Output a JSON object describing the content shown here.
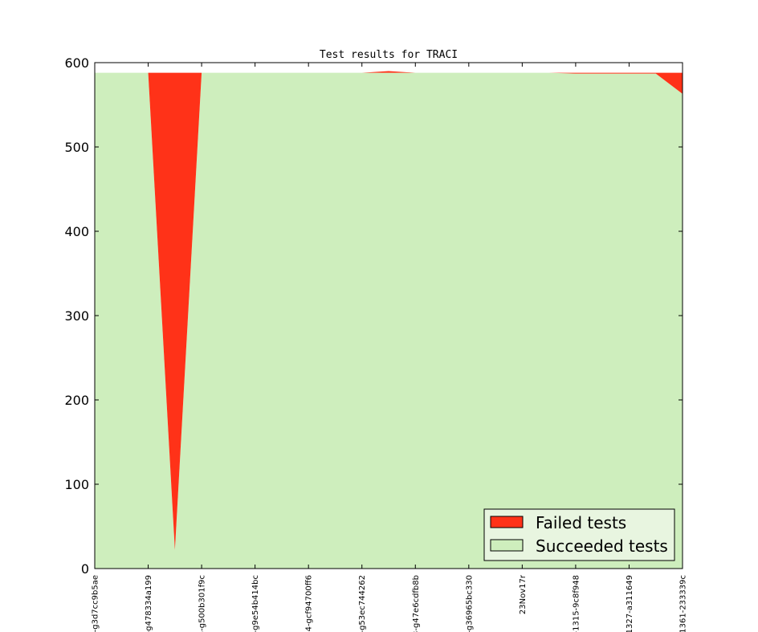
{
  "chart_data": {
    "type": "area",
    "title": "Test results for TRACI",
    "xlabel": "",
    "ylabel": "",
    "ylim": [
      0,
      600
    ],
    "yticks": [
      "0",
      "100",
      "200",
      "300",
      "400",
      "500",
      "600"
    ],
    "x_tick_labels": [
      "-g3d7cc9b5ae",
      "-g478334a199",
      "-g500b301f9c",
      "-g9e54b414bc",
      "-gcf94700ff6",
      "-g53ec744262",
      "-g47e6cdfb8b",
      "-g36965bc330",
      "23Nov17r",
      "-1315-9c8f948",
      "1327-a311649",
      "1361-233339c"
    ],
    "x_tick_visible_labels": [
      "l-g3d7cc9b5ae",
      "-g478334a199",
      "5-g500b301f9c",
      "-g9e54b414bc",
      "4-gcf94700ff6",
      "-g53ec744262",
      "3-g47e6cdfb8b",
      "-g36965bc330",
      "23Nov17r",
      "-1315-9c8f948",
      "1327-a311649",
      "1361-233339c"
    ],
    "grid": false,
    "legend_position": "bottom-right",
    "series": [
      {
        "name": "Succeeded tests",
        "color": "#ceeebd",
        "values": [
          588,
          588,
          588,
          22,
          588,
          588,
          588,
          588,
          588,
          588,
          588,
          588,
          588,
          588,
          588,
          588,
          588,
          588,
          587,
          587,
          587,
          587,
          563
        ]
      },
      {
        "name": "Failed tests",
        "color": "#ff3218",
        "values": [
          0,
          0,
          0,
          566,
          0,
          0,
          0,
          0,
          0,
          0,
          0,
          2,
          0,
          0,
          0,
          0,
          0,
          0,
          1,
          1,
          1,
          1,
          25
        ]
      }
    ]
  }
}
